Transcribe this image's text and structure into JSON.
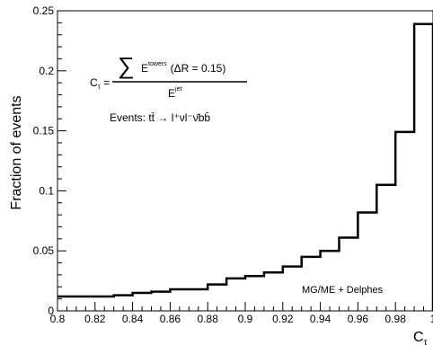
{
  "chart_data": {
    "type": "histogram",
    "xlabel": "C",
    "xlabel_sub": "τ",
    "ylabel": "Fraction of events",
    "xlim": [
      0.8,
      1.0
    ],
    "ylim": [
      0,
      0.25
    ],
    "xticks": [
      "0.8",
      "0.82",
      "0.84",
      "0.86",
      "0.88",
      "0.9",
      "0.92",
      "0.94",
      "0.96",
      "0.98",
      "1"
    ],
    "yticks": [
      "0",
      "0.05",
      "0.1",
      "0.15",
      "0.2",
      "0.25"
    ],
    "bin_edges": [
      0.8,
      0.81,
      0.82,
      0.83,
      0.84,
      0.85,
      0.86,
      0.87,
      0.88,
      0.89,
      0.9,
      0.91,
      0.92,
      0.93,
      0.94,
      0.95,
      0.96,
      0.97,
      0.98,
      0.99,
      1.0
    ],
    "values": [
      0.012,
      0.012,
      0.012,
      0.013,
      0.015,
      0.016,
      0.018,
      0.018,
      0.022,
      0.027,
      0.029,
      0.032,
      0.037,
      0.045,
      0.05,
      0.061,
      0.082,
      0.105,
      0.149,
      0.239
    ],
    "grid": false,
    "annotations": {
      "formula_lhs": "C",
      "formula_lhs_sub": "τ",
      "formula_sum": "∑",
      "formula_num": "E",
      "formula_num_sup": "towers",
      "formula_num_rest": "(ΔR = 0.15)",
      "formula_den": "E",
      "formula_den_sup": "jet",
      "events_prefix": "Events: ",
      "events_process": "tt̄ → l⁺νl⁻ν̄bb̄",
      "generator": "MG/ME + Delphes"
    }
  }
}
